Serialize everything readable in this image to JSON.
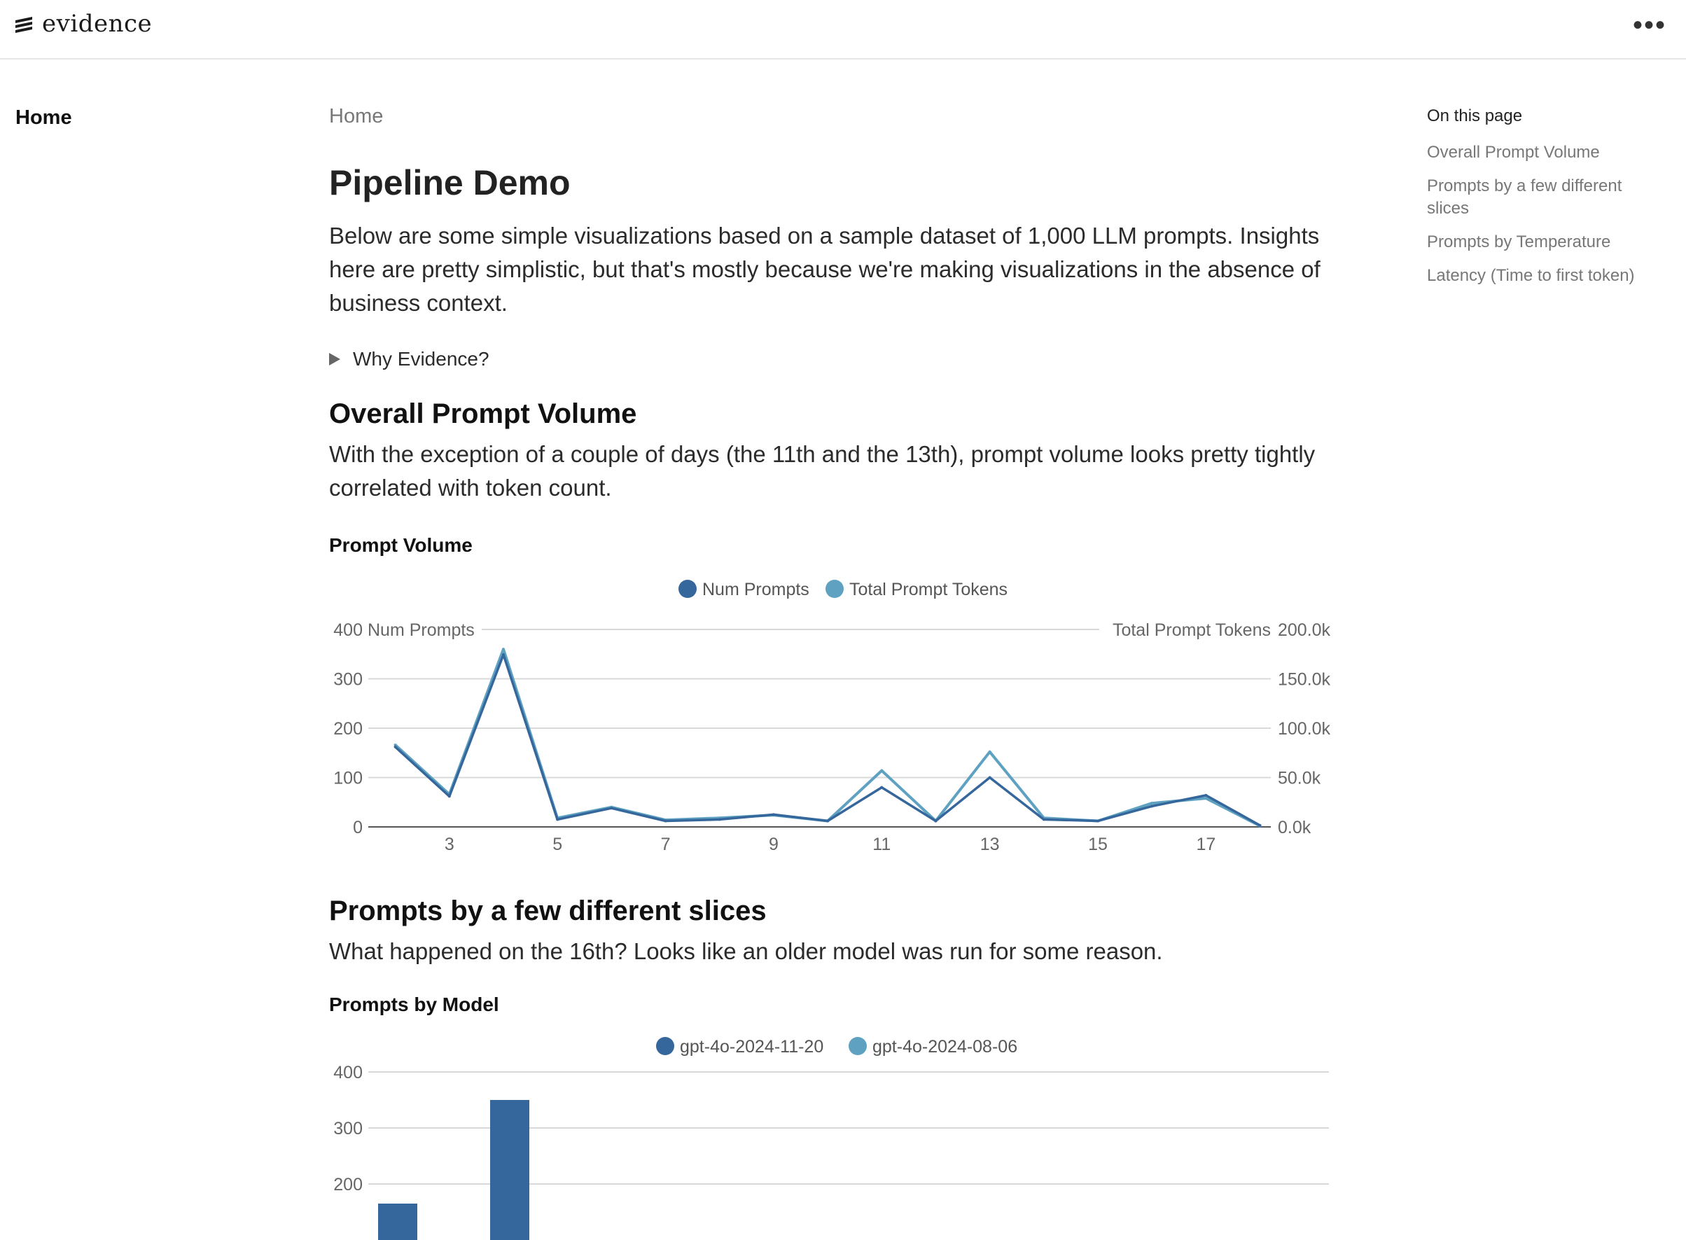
{
  "app": {
    "name": "evidence"
  },
  "nav": {
    "home": "Home"
  },
  "breadcrumb": "Home",
  "page": {
    "title": "Pipeline Demo",
    "intro": "Below are some simple visualizations based on a sample dataset of 1,000 LLM prompts. Insights here are pretty simplistic, but that's mostly because we're making visualizations in the absence of business context.",
    "details_label": "Why Evidence?"
  },
  "toc": {
    "title": "On this page",
    "items": [
      "Overall Prompt Volume",
      "Prompts by a few different slices",
      "Prompts by Temperature",
      "Latency (Time to first token)"
    ]
  },
  "sections": {
    "volume": {
      "heading": "Overall Prompt Volume",
      "text": "With the exception of a couple of days (the 11th and the 13th), prompt volume looks pretty tightly correlated with token count."
    },
    "slices": {
      "heading": "Prompts by a few different slices",
      "text": "What happened on the 16th? Looks like an older model was run for some reason."
    }
  },
  "colors": {
    "series_dark": "#35679c",
    "series_light": "#5ea1c1",
    "grid": "#d9d9d9",
    "tick": "#666666"
  },
  "chart_data": [
    {
      "type": "line",
      "title": "Prompt Volume",
      "x": [
        2,
        3,
        4,
        5,
        6,
        7,
        8,
        9,
        10,
        11,
        12,
        13,
        14,
        15,
        16,
        17,
        18
      ],
      "xticks": [
        "3",
        "5",
        "7",
        "9",
        "11",
        "13",
        "15",
        "17"
      ],
      "series": [
        {
          "name": "Num Prompts",
          "axis": "left",
          "values": [
            162,
            62,
            349,
            15,
            38,
            12,
            15,
            25,
            12,
            80,
            12,
            100,
            15,
            12,
            42,
            64,
            3
          ]
        },
        {
          "name": "Total Prompt Tokens",
          "axis": "right",
          "values": [
            83000,
            33000,
            180000,
            9000,
            20000,
            7000,
            9000,
            12000,
            6000,
            57000,
            6000,
            76000,
            9000,
            6000,
            24000,
            29000,
            1000
          ]
        }
      ],
      "ylabel": "Num Prompts",
      "y2label": "Total Prompt Tokens",
      "ylim": [
        0,
        400
      ],
      "y2lim": [
        0,
        200000
      ],
      "yticks": [
        "0",
        "100",
        "200",
        "300",
        "400"
      ],
      "y2ticks": [
        "0.0k",
        "50.0k",
        "100.0k",
        "150.0k",
        "200.0k"
      ],
      "grid": true,
      "legend": "top-center"
    },
    {
      "type": "bar",
      "title": "Prompts by Model",
      "series": [
        {
          "name": "gpt-4o-2024-11-20",
          "values": [
            165,
            350
          ]
        },
        {
          "name": "gpt-4o-2024-08-06",
          "values": []
        }
      ],
      "yticks": [
        "200",
        "300",
        "400"
      ],
      "ylim": [
        0,
        400
      ],
      "grid": true,
      "legend": "top-center"
    }
  ]
}
